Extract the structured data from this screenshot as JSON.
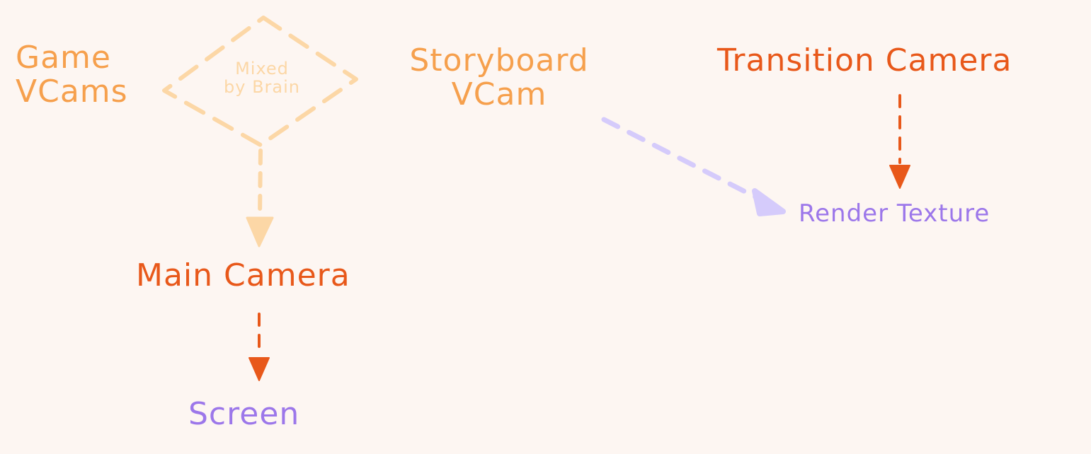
{
  "colors": {
    "background": "#fdf6f2",
    "light_orange": "#f6a04d",
    "pale_orange": "#fcd7a6",
    "dark_orange": "#e8581a",
    "purple": "#9c77ea",
    "pale_purple": "#d5cbfb"
  },
  "nodes": {
    "game_vcams": {
      "line1": "Game",
      "line2": "VCams"
    },
    "brain_mix": {
      "line1": "Mixed",
      "line2": "by Brain"
    },
    "storyboard_vcam": {
      "line1": "Storyboard",
      "line2": "VCam"
    },
    "transition_camera": {
      "label": "Transition Camera"
    },
    "render_texture": {
      "label": "Render Texture"
    },
    "main_camera": {
      "label": "Main Camera"
    },
    "screen": {
      "label": "Screen"
    }
  },
  "edges": [
    {
      "from": "brain_mix",
      "to": "main_camera",
      "style": "dashed"
    },
    {
      "from": "main_camera",
      "to": "screen",
      "style": "dashed"
    },
    {
      "from": "storyboard_vcam",
      "to": "render_texture",
      "style": "dashed"
    },
    {
      "from": "transition_camera",
      "to": "render_texture",
      "style": "dashed"
    }
  ]
}
